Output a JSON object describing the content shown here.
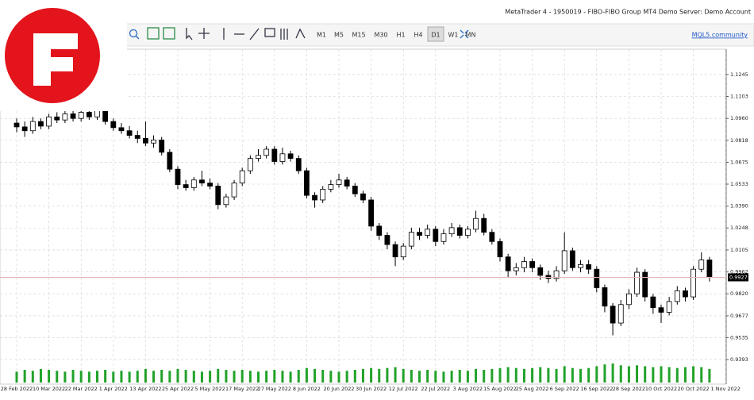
{
  "window": {
    "title": "MetaTrader 4 - 1950019 - FIBO-FIBO Group MT4 Demo Server: Demo Account"
  },
  "toolbar": {
    "timeframes": [
      "M1",
      "M5",
      "M15",
      "M30",
      "H1",
      "H4",
      "D1",
      "W1",
      "MN"
    ],
    "active_timeframe_index": 6,
    "community_link": "MQL5.community"
  },
  "chart_data": {
    "type": "candlestick",
    "candles": [
      [
        1.093,
        1.096,
        1.087,
        1.0905
      ],
      [
        1.0905,
        1.094,
        1.084,
        1.088
      ],
      [
        1.088,
        1.097,
        1.086,
        1.094
      ],
      [
        1.094,
        1.096,
        1.089,
        1.091
      ],
      [
        1.091,
        1.099,
        1.089,
        1.097
      ],
      [
        1.097,
        1.1,
        1.093,
        1.095
      ],
      [
        1.095,
        1.102,
        1.093,
        1.099
      ],
      [
        1.099,
        1.101,
        1.094,
        1.096
      ],
      [
        1.096,
        1.103,
        1.094,
        1.1
      ],
      [
        1.1,
        1.102,
        1.095,
        1.097
      ],
      [
        1.097,
        1.105,
        1.095,
        1.102
      ],
      [
        1.102,
        1.104,
        1.092,
        1.094
      ],
      [
        1.094,
        1.096,
        1.088,
        1.09
      ],
      [
        1.09,
        1.093,
        1.086,
        1.088
      ],
      [
        1.088,
        1.091,
        1.083,
        1.085
      ],
      [
        1.085,
        1.088,
        1.08,
        1.083
      ],
      [
        1.083,
        1.094,
        1.078,
        1.08
      ],
      [
        1.08,
        1.085,
        1.077,
        1.082
      ],
      [
        1.082,
        1.084,
        1.072,
        1.074
      ],
      [
        1.074,
        1.076,
        1.061,
        1.063
      ],
      [
        1.063,
        1.065,
        1.05,
        1.053
      ],
      [
        1.053,
        1.056,
        1.049,
        1.051
      ],
      [
        1.051,
        1.058,
        1.049,
        1.056
      ],
      [
        1.056,
        1.062,
        1.052,
        1.054
      ],
      [
        1.054,
        1.057,
        1.05,
        1.052
      ],
      [
        1.052,
        1.054,
        1.037,
        1.04
      ],
      [
        1.04,
        1.047,
        1.038,
        1.045
      ],
      [
        1.045,
        1.056,
        1.043,
        1.054
      ],
      [
        1.054,
        1.064,
        1.052,
        1.062
      ],
      [
        1.062,
        1.072,
        1.06,
        1.07
      ],
      [
        1.07,
        1.076,
        1.068,
        1.072
      ],
      [
        1.072,
        1.078,
        1.07,
        1.076
      ],
      [
        1.076,
        1.078,
        1.066,
        1.068
      ],
      [
        1.068,
        1.077,
        1.066,
        1.073
      ],
      [
        1.073,
        1.075,
        1.068,
        1.07
      ],
      [
        1.07,
        1.072,
        1.06,
        1.062
      ],
      [
        1.062,
        1.064,
        1.044,
        1.046
      ],
      [
        1.046,
        1.048,
        1.038,
        1.043
      ],
      [
        1.043,
        1.052,
        1.041,
        1.05
      ],
      [
        1.05,
        1.056,
        1.048,
        1.053
      ],
      [
        1.053,
        1.06,
        1.051,
        1.056
      ],
      [
        1.056,
        1.058,
        1.05,
        1.052
      ],
      [
        1.052,
        1.054,
        1.045,
        1.047
      ],
      [
        1.047,
        1.049,
        1.041,
        1.043
      ],
      [
        1.043,
        1.045,
        1.023,
        1.026
      ],
      [
        1.026,
        1.028,
        1.017,
        1.02
      ],
      [
        1.02,
        1.022,
        1.011,
        1.014
      ],
      [
        1.014,
        1.016,
        1.0,
        1.006
      ],
      [
        1.006,
        1.015,
        1.004,
        1.013
      ],
      [
        1.013,
        1.025,
        1.011,
        1.022
      ],
      [
        1.022,
        1.025,
        1.017,
        1.02
      ],
      [
        1.02,
        1.027,
        1.018,
        1.024
      ],
      [
        1.024,
        1.026,
        1.013,
        1.016
      ],
      [
        1.016,
        1.024,
        1.014,
        1.021
      ],
      [
        1.021,
        1.028,
        1.019,
        1.025
      ],
      [
        1.025,
        1.027,
        1.018,
        1.02
      ],
      [
        1.02,
        1.026,
        1.018,
        1.024
      ],
      [
        1.024,
        1.036,
        1.022,
        1.031
      ],
      [
        1.031,
        1.034,
        1.02,
        1.022
      ],
      [
        1.022,
        1.024,
        1.014,
        1.016
      ],
      [
        1.016,
        1.018,
        1.003,
        1.006
      ],
      [
        1.006,
        1.008,
        0.993,
        0.997
      ],
      [
        0.997,
        1.002,
        0.994,
        0.999
      ],
      [
        0.999,
        1.006,
        0.996,
        1.003
      ],
      [
        1.003,
        1.005,
        0.996,
        0.999
      ],
      [
        0.999,
        1.001,
        0.991,
        0.994
      ],
      [
        0.994,
        0.997,
        0.989,
        0.992
      ],
      [
        0.992,
        1.0,
        0.99,
        0.997
      ],
      [
        0.997,
        1.022,
        0.995,
        1.01
      ],
      [
        1.01,
        1.012,
        0.997,
        0.999
      ],
      [
        0.999,
        1.004,
        0.996,
        1.001
      ],
      [
        1.001,
        1.004,
        0.995,
        0.998
      ],
      [
        0.998,
        1.0,
        0.983,
        0.986
      ],
      [
        0.986,
        0.988,
        0.97,
        0.974
      ],
      [
        0.974,
        0.976,
        0.955,
        0.963
      ],
      [
        0.963,
        0.978,
        0.961,
        0.975
      ],
      [
        0.975,
        0.985,
        0.972,
        0.982
      ],
      [
        0.982,
        0.999,
        0.98,
        0.996
      ],
      [
        0.996,
        0.998,
        0.977,
        0.98
      ],
      [
        0.98,
        0.982,
        0.969,
        0.973
      ],
      [
        0.973,
        0.975,
        0.963,
        0.97
      ],
      [
        0.97,
        0.98,
        0.968,
        0.977
      ],
      [
        0.977,
        0.987,
        0.975,
        0.984
      ],
      [
        0.984,
        0.986,
        0.977,
        0.98
      ],
      [
        0.98,
        1.0,
        0.978,
        0.998
      ],
      [
        0.998,
        1.009,
        0.996,
        1.004
      ],
      [
        1.004,
        1.006,
        0.99,
        0.9927
      ]
    ],
    "volumes": [
      12,
      14,
      13,
      15,
      14,
      13,
      12,
      14,
      13,
      12,
      13,
      14,
      12,
      13,
      12,
      13,
      15,
      13,
      14,
      13,
      15,
      14,
      13,
      12,
      13,
      15,
      14,
      13,
      14,
      13,
      12,
      13,
      14,
      13,
      12,
      14,
      16,
      15,
      14,
      13,
      12,
      13,
      14,
      15,
      16,
      15,
      16,
      17,
      15,
      14,
      13,
      14,
      13,
      12,
      13,
      14,
      13,
      15,
      14,
      15,
      16,
      17,
      16,
      15,
      16,
      17,
      16,
      15,
      18,
      16,
      15,
      16,
      18,
      20,
      21,
      19,
      18,
      19,
      18,
      17,
      18,
      17,
      16,
      17,
      18,
      17,
      15
    ],
    "x_labels": [
      "28 Feb 2022",
      "10 Mar 2022",
      "22 Mar 2022",
      "1 Apr 2022",
      "13 Apr 2022",
      "25 Apr 2022",
      "5 May 2022",
      "17 May 2022",
      "27 May 2022",
      "8 Jun 2022",
      "20 Jun 2022",
      "30 Jun 2022",
      "12 Jul 2022",
      "22 Jul 2022",
      "3 Aug 2022",
      "15 Aug 2022",
      "25 Aug 2022",
      "6 Sep 2022",
      "16 Sep 2022",
      "28 Sep 2022",
      "10 Oct 2022",
      "20 Oct 2022",
      "1 Nov 2022"
    ],
    "ylim": [
      0.9233,
      1.141
    ],
    "yticks": [
      0.9393,
      0.9535,
      0.9677,
      {
        "value": 0.982,
        "label": "0.9820"
      },
      0.9962,
      1.0105,
      1.0248,
      {
        "value": 1.039,
        "label": "1.0390"
      },
      1.0533,
      1.0675,
      1.0818,
      {
        "value": 1.096,
        "label": "1.0960"
      },
      1.1103,
      1.1245
    ],
    "current_price": 0.9927,
    "grid": true,
    "volume_color": "#22a22a",
    "current_price_line_color": "#e8b4b4"
  }
}
